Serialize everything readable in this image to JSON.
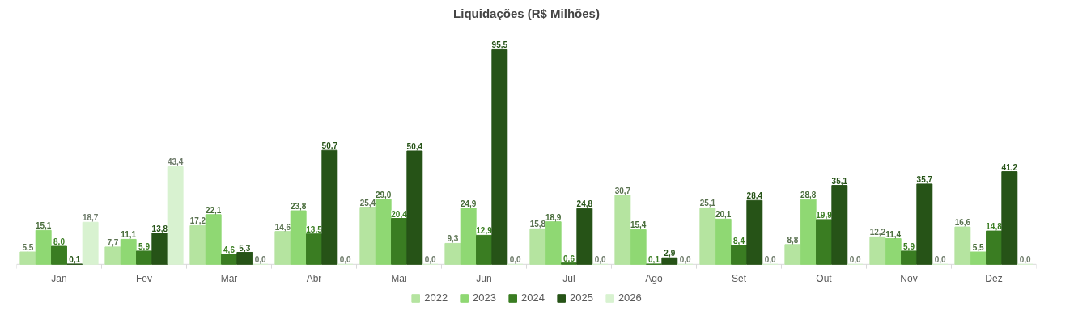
{
  "chart_data": {
    "type": "bar",
    "title": "Liquidações (R$ Milhões)",
    "categories": [
      "Jan",
      "Fev",
      "Mar",
      "Abr",
      "Mai",
      "Jun",
      "Jul",
      "Ago",
      "Set",
      "Out",
      "Nov",
      "Dez"
    ],
    "series": [
      {
        "name": "2022",
        "color": "#b5e4a0",
        "values": [
          5.5,
          7.7,
          17.2,
          14.6,
          25.4,
          9.3,
          15.8,
          30.7,
          25.1,
          8.8,
          12.2,
          16.6
        ],
        "value_labels": [
          "5,5",
          "7,7",
          "17,2",
          "14,6",
          "25,4",
          "9,3",
          "15,8",
          "30,7",
          "25,1",
          "8,8",
          "12,2",
          "16,6"
        ]
      },
      {
        "name": "2023",
        "color": "#8fd873",
        "values": [
          15.1,
          11.1,
          22.1,
          23.8,
          29.0,
          24.9,
          18.9,
          15.4,
          20.1,
          28.8,
          11.4,
          5.5
        ],
        "value_labels": [
          "15,1",
          "11,1",
          "22,1",
          "23,8",
          "29,0",
          "24,9",
          "18,9",
          "15,4",
          "20,1",
          "28,8",
          "11,4",
          "5,5"
        ]
      },
      {
        "name": "2024",
        "color": "#3a7d22",
        "values": [
          8.0,
          5.9,
          4.6,
          13.5,
          20.4,
          12.9,
          0.6,
          0.1,
          8.4,
          19.9,
          5.9,
          14.8
        ],
        "value_labels": [
          "8,0",
          "5,9",
          "4,6",
          "13,5",
          "20,4",
          "12,9",
          "0,6",
          "0,1",
          "8,4",
          "19,9",
          "5,9",
          "14,8"
        ]
      },
      {
        "name": "2025",
        "color": "#265317",
        "values": [
          0.1,
          13.8,
          5.3,
          50.7,
          50.4,
          95.5,
          24.8,
          2.9,
          28.4,
          35.1,
          35.7,
          41.2
        ],
        "value_labels": [
          "0,1",
          "13,8",
          "5,3",
          "50,7",
          "50,4",
          "95,5",
          "24,8",
          "2,9",
          "28,4",
          "35,1",
          "35,7",
          "41,2"
        ]
      },
      {
        "name": "2026",
        "color": "#d8f2d0",
        "values": [
          18.7,
          43.4,
          0.0,
          0.0,
          0.0,
          0.0,
          0.0,
          0.0,
          0.0,
          0.0,
          0.0,
          0.0
        ],
        "value_labels": [
          "18,7",
          "43,4",
          "0,0",
          "0,0",
          "0,0",
          "0,0",
          "0,0",
          "0,0",
          "0,0",
          "0,0",
          "0,0",
          "0,0"
        ]
      }
    ],
    "legend": "bottom"
  }
}
